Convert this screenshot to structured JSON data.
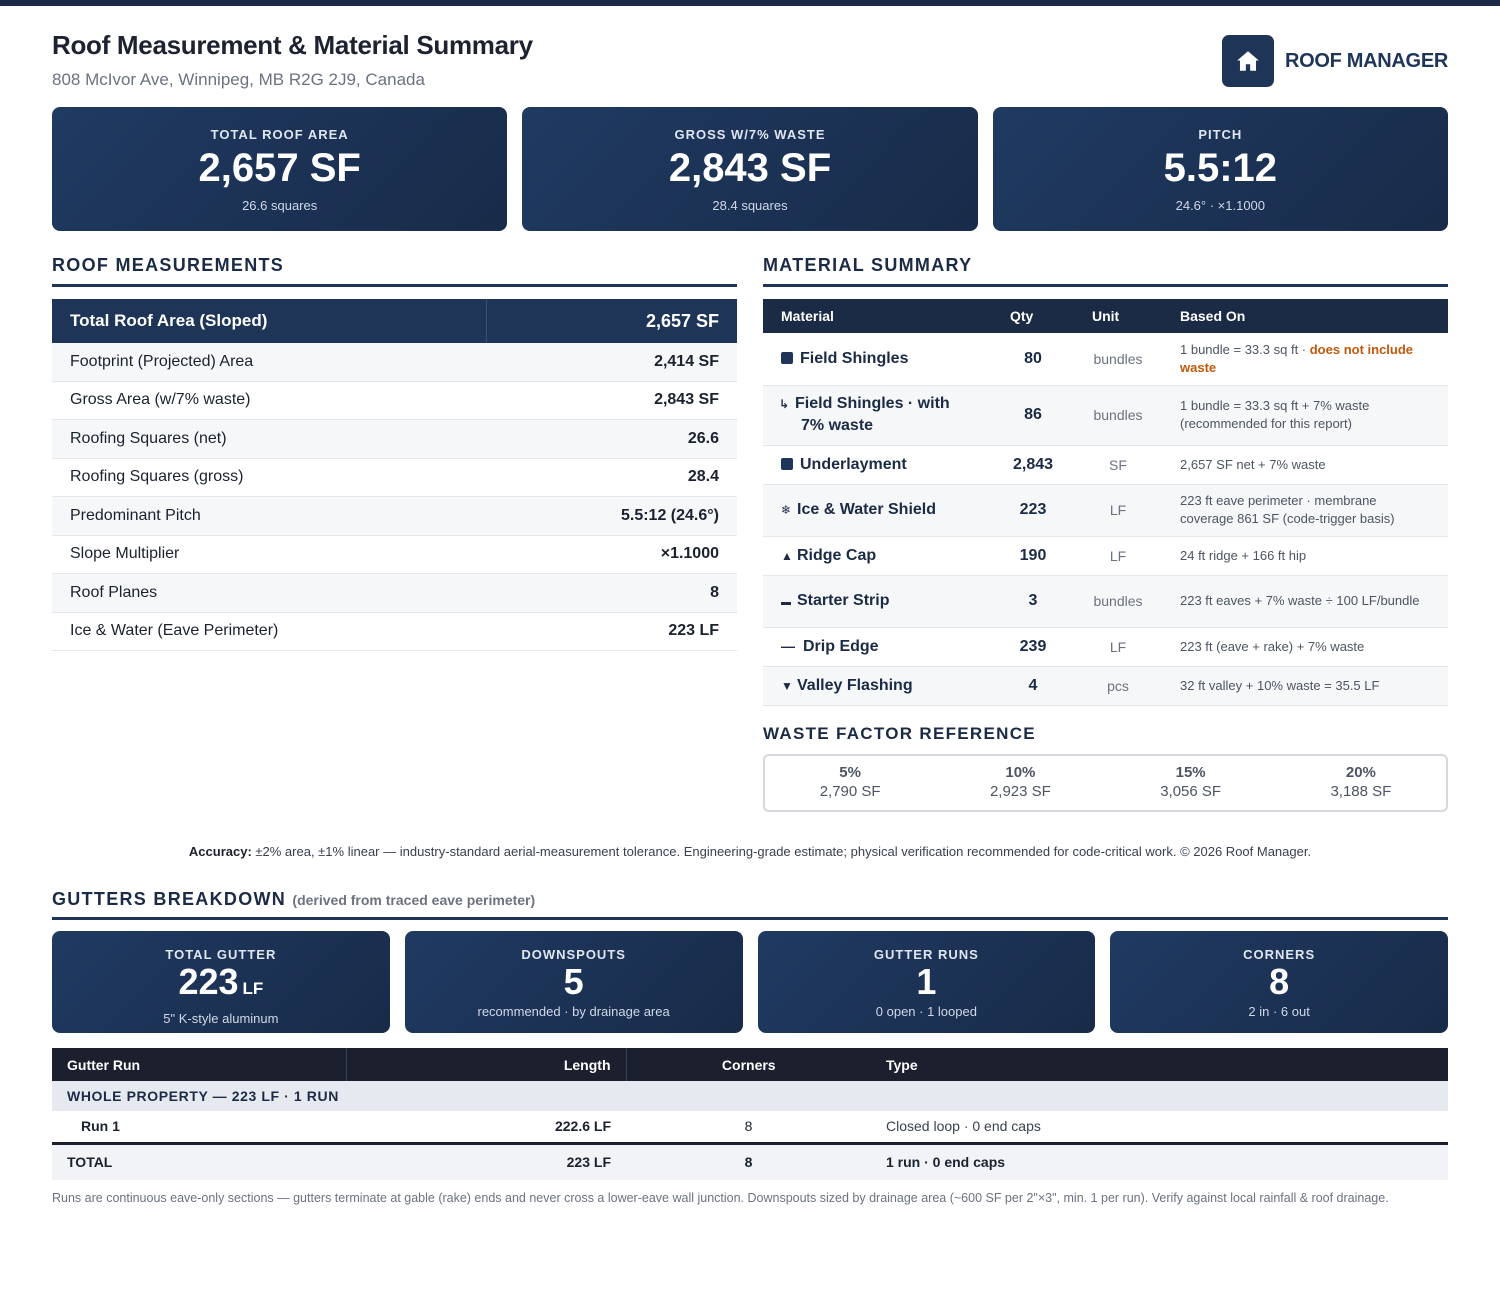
{
  "header": {
    "title": "Roof Measurement & Material Summary",
    "address": "808 McIvor Ave, Winnipeg, MB R2G 2J9, Canada",
    "brand": "ROOF MANAGER",
    "brand_icon": "house-icon"
  },
  "stats": [
    {
      "label": "TOTAL ROOF AREA",
      "value": "2,657 SF",
      "sub": "26.6 squares"
    },
    {
      "label": "GROSS W/7% WASTE",
      "value": "2,843 SF",
      "sub": "28.4 squares"
    },
    {
      "label": "PITCH",
      "value": "5.5:12",
      "sub": "24.6° · ×1.1000"
    }
  ],
  "roof_measurements": {
    "heading": "ROOF MEASUREMENTS",
    "head_label": "Total Roof Area (Sloped)",
    "head_value": "2,657 SF",
    "rows": [
      {
        "label": "Footprint (Projected) Area",
        "value": "2,414 SF"
      },
      {
        "label": "Gross Area (w/7% waste)",
        "value": "2,843 SF"
      },
      {
        "label": "Roofing Squares (net)",
        "value": "26.6"
      },
      {
        "label": "Roofing Squares (gross)",
        "value": "28.4"
      },
      {
        "label": "Predominant Pitch",
        "value": "5.5:12 (24.6°)"
      },
      {
        "label": "Slope Multiplier",
        "value": "×1.1000"
      },
      {
        "label": "Roof Planes",
        "value": "8"
      },
      {
        "label": "Ice & Water (Eave Perimeter)",
        "value": "223 LF"
      }
    ]
  },
  "material_summary": {
    "heading": "MATERIAL SUMMARY",
    "columns": [
      "Material",
      "Qty",
      "Unit",
      "Based On"
    ],
    "rows": [
      {
        "icon": "square",
        "name": "Field Shingles",
        "qty": "80",
        "unit": "bundles",
        "basis": "1 bundle = 33.3 sq ft · ",
        "warn": "does not include waste"
      },
      {
        "icon": "↳",
        "name": "Field Shingles · with 7% waste",
        "qty": "86",
        "unit": "bundles",
        "basis": "1 bundle = 33.3 sq ft + 7% waste (recommended for this report)"
      },
      {
        "icon": "square",
        "name": "Underlayment",
        "qty": "2,843",
        "unit": "SF",
        "basis": "2,657 SF net + 7% waste"
      },
      {
        "icon": "❄",
        "name": "Ice & Water Shield",
        "qty": "223",
        "unit": "LF",
        "basis": "223 ft eave perimeter · membrane coverage 861 SF (code-trigger basis)"
      },
      {
        "icon": "▲",
        "name": "Ridge Cap",
        "qty": "190",
        "unit": "LF",
        "basis": "24 ft ridge + 166 ft hip"
      },
      {
        "icon": "▬",
        "name": "Starter Strip",
        "qty": "3",
        "unit": "bundles",
        "basis": "223 ft eaves + 7% waste ÷ 100 LF/bundle"
      },
      {
        "icon": "—",
        "name": "Drip Edge",
        "qty": "239",
        "unit": "LF",
        "basis": "223 ft (eave + rake) + 7% waste"
      },
      {
        "icon": "▼",
        "name": "Valley Flashing",
        "qty": "4",
        "unit": "pcs",
        "basis": "32 ft valley + 10% waste = 35.5 LF"
      }
    ]
  },
  "waste_factor": {
    "heading": "WASTE FACTOR REFERENCE",
    "items": [
      {
        "pct": "5%",
        "value": "2,790 SF"
      },
      {
        "pct": "10%",
        "value": "2,923 SF"
      },
      {
        "pct": "15%",
        "value": "3,056 SF"
      },
      {
        "pct": "20%",
        "value": "3,188 SF"
      }
    ]
  },
  "accuracy": {
    "label": "Accuracy:",
    "text": " ±2% area, ±1% linear — industry-standard aerial-measurement tolerance. Engineering-grade estimate; physical verification recommended for code-critical work. © 2026 Roof Manager."
  },
  "gutters": {
    "heading": "GUTTERS BREAKDOWN",
    "note": "(derived from traced eave perimeter)",
    "cards": [
      {
        "label": "TOTAL GUTTER",
        "value": "223",
        "unit": "LF",
        "sub": "5\" K-style aluminum"
      },
      {
        "label": "DOWNSPOUTS",
        "value": "5",
        "unit": "",
        "sub": "recommended · by drainage area"
      },
      {
        "label": "GUTTER RUNS",
        "value": "1",
        "unit": "",
        "sub": "0 open · 1 looped"
      },
      {
        "label": "CORNERS",
        "value": "8",
        "unit": "",
        "sub": "2 in · 6 out"
      }
    ],
    "table": {
      "columns": [
        "Gutter Run",
        "Length",
        "Corners",
        "Type"
      ],
      "group": "WHOLE PROPERTY — 223 LF · 1 RUN",
      "run": {
        "name": "Run 1",
        "length": "222.6 LF",
        "corners": "8",
        "type": "Closed loop · 0 end caps"
      },
      "total": {
        "name": "TOTAL",
        "length": "223 LF",
        "corners": "8",
        "type": "1 run · 0 end caps"
      }
    },
    "footnote": "Runs are continuous eave-only sections — gutters terminate at gable (rake) ends and never cross a lower-eave wall junction. Downspouts sized by drainage area (~600 SF per 2\"×3\", min. 1 per run). Verify against local rainfall & roof drainage."
  },
  "colors": {
    "navy": "#1e3558",
    "dark": "#1b2b46",
    "warn": "#c2590a"
  }
}
